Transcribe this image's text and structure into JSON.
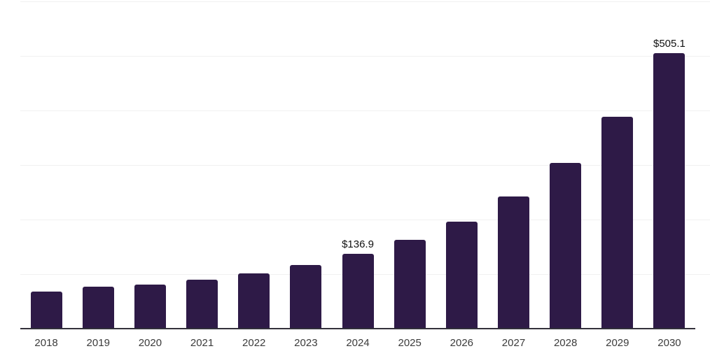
{
  "chart_data": {
    "type": "bar",
    "title": "",
    "xlabel": "",
    "ylabel": "",
    "categories": [
      "2018",
      "2019",
      "2020",
      "2021",
      "2022",
      "2023",
      "2024",
      "2025",
      "2026",
      "2027",
      "2028",
      "2029",
      "2030"
    ],
    "values": [
      67.8,
      76.7,
      80.6,
      89.5,
      101.0,
      116.4,
      136.9,
      162.4,
      195.6,
      241.7,
      304.4,
      388.8,
      505.1
    ],
    "point_labels": [
      "",
      "",
      "",
      "",
      "",
      "",
      "$136.9",
      "",
      "",
      "",
      "",
      "",
      "$505.1"
    ],
    "ylim": [
      0,
      600
    ],
    "gridline_step": 100,
    "grid": true,
    "legend": false,
    "colors": {
      "bar": "#2E1A47",
      "gridline": "#F0F0F0",
      "axis_line": "#33313B",
      "value_label": "#111111",
      "tick_label": "#3B3B3B",
      "background": "#FFFFFF"
    }
  }
}
